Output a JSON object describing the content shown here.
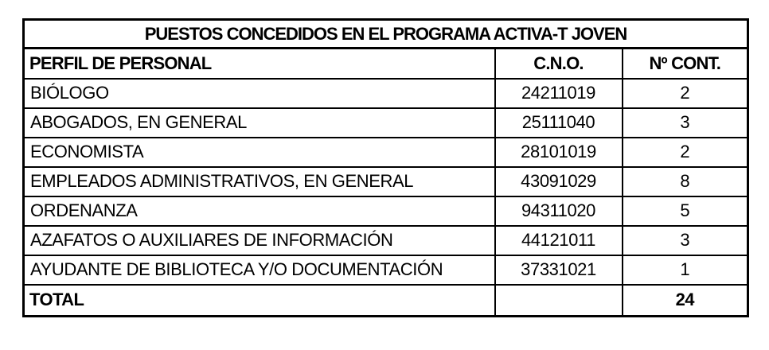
{
  "page": {
    "background_color": "#ffffff",
    "text_color": "#000000",
    "border_color": "#000000"
  },
  "table": {
    "title": "PUESTOS CONCEDIDOS EN EL PROGRAMA ACTIVA-T JOVEN",
    "columns": [
      "PERFIL DE PERSONAL",
      "C.N.O.",
      "Nº CONT."
    ],
    "rows": [
      {
        "perfil": "BIÓLOGO",
        "cno": "24211019",
        "cont": "2"
      },
      {
        "perfil": "ABOGADOS, EN GENERAL",
        "cno": "25111040",
        "cont": "3"
      },
      {
        "perfil": "ECONOMISTA",
        "cno": "28101019",
        "cont": "2"
      },
      {
        "perfil": "EMPLEADOS ADMINISTRATIVOS, EN GENERAL",
        "cno": "43091029",
        "cont": "8"
      },
      {
        "perfil": "ORDENANZA",
        "cno": "94311020",
        "cont": "5"
      },
      {
        "perfil": "AZAFATOS O AUXILIARES DE INFORMACIÓN",
        "cno": "44121011",
        "cont": "3"
      },
      {
        "perfil": "AYUDANTE DE BIBLIOTECA Y/O DOCUMENTACIÓN",
        "cno": "37331021",
        "cont": "1"
      }
    ],
    "total": {
      "label": "TOTAL",
      "cno": "",
      "value": "24"
    }
  }
}
